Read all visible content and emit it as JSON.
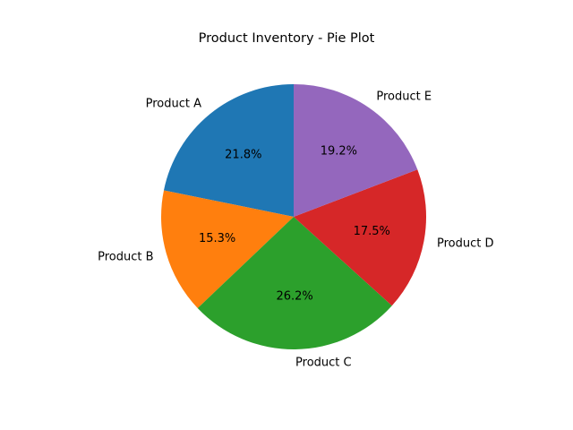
{
  "chart_data": {
    "type": "pie",
    "title": "Product Inventory - Pie Plot",
    "categories": [
      "Product A",
      "Product B",
      "Product C",
      "Product D",
      "Product E"
    ],
    "values": [
      21.8,
      15.3,
      26.2,
      17.5,
      19.2
    ],
    "percent_labels": [
      "21.8%",
      "15.3%",
      "26.2%",
      "17.5%",
      "19.2%"
    ],
    "colors": [
      "#1f77b4",
      "#ff7f0e",
      "#2ca02c",
      "#d62728",
      "#9467bd"
    ],
    "start_angle_deg": 90,
    "direction": "counterclockwise",
    "legend": "none"
  }
}
